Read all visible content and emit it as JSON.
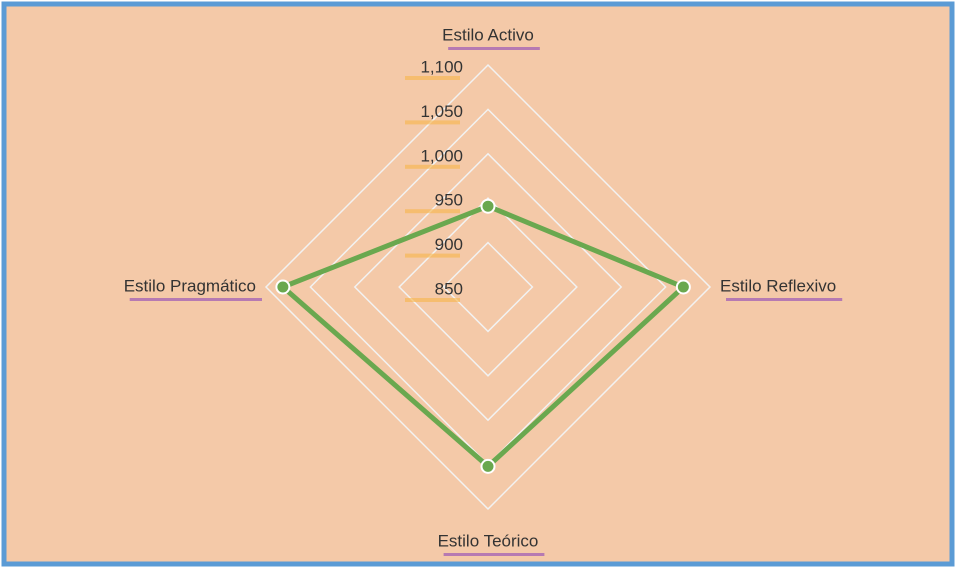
{
  "chart_data": {
    "type": "radar",
    "categories": [
      "Estilo Activo",
      "Estilo Reflexivo",
      "Estilo Teórico",
      "Estilo Pragmático"
    ],
    "series": [
      {
        "name": null,
        "color": "#6aa84f",
        "values": [
          941,
          1070,
          1052,
          1081
        ]
      }
    ],
    "ylim": [
      850,
      1100
    ],
    "yticks": [
      850,
      900,
      950,
      {
        "value": 1000,
        "label": "1,000"
      },
      {
        "value": 1050,
        "label": "1,050"
      },
      {
        "value": 1100,
        "label": "1,100"
      }
    ],
    "grid": true
  }
}
